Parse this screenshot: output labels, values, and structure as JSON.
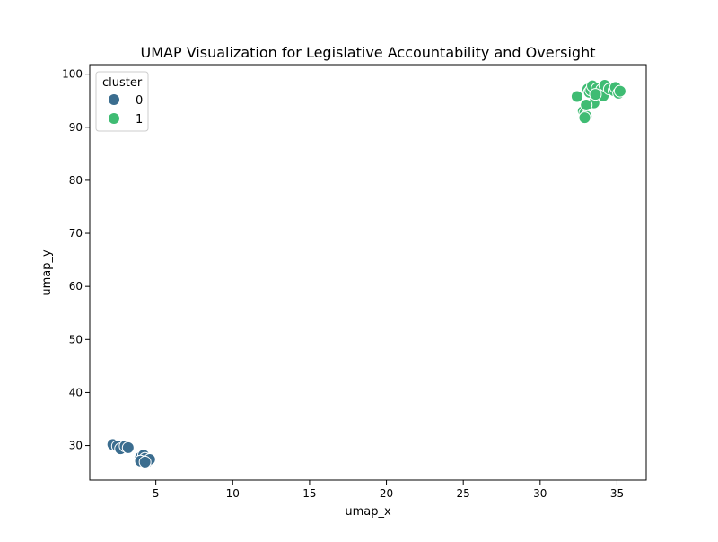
{
  "chart_data": {
    "type": "scatter",
    "title": "UMAP Visualization for Legislative Accountability and Oversight",
    "xlabel": "umap_x",
    "ylabel": "umap_y",
    "xlim": [
      0.7,
      36.9
    ],
    "ylim": [
      23.5,
      101.8
    ],
    "xticks": [
      5,
      10,
      15,
      20,
      25,
      30,
      35
    ],
    "yticks": [
      30,
      40,
      50,
      60,
      70,
      80,
      90,
      100
    ],
    "grid": false,
    "legend": {
      "title": "cluster",
      "placement": "top-left"
    },
    "series": [
      {
        "name": "0",
        "color": "#3b6d8f",
        "points": [
          [
            2.2,
            30.2
          ],
          [
            2.5,
            29.9
          ],
          [
            2.7,
            29.4
          ],
          [
            3.0,
            29.9
          ],
          [
            3.2,
            29.6
          ],
          [
            4.0,
            27.8
          ],
          [
            4.2,
            28.2
          ],
          [
            4.3,
            27.6
          ],
          [
            4.5,
            27.1
          ],
          [
            4.6,
            27.4
          ],
          [
            4.0,
            27.1
          ],
          [
            4.3,
            26.9
          ]
        ]
      },
      {
        "name": "1",
        "color": "#3fbc73",
        "points": [
          [
            32.4,
            95.8
          ],
          [
            32.8,
            93.0
          ],
          [
            32.9,
            92.6
          ],
          [
            33.0,
            92.1
          ],
          [
            32.9,
            91.8
          ],
          [
            33.1,
            97.2
          ],
          [
            33.2,
            96.6
          ],
          [
            33.3,
            97.0
          ],
          [
            33.4,
            97.8
          ],
          [
            33.5,
            94.6
          ],
          [
            33.7,
            97.3
          ],
          [
            34.0,
            97.1
          ],
          [
            34.1,
            95.9
          ],
          [
            34.2,
            97.9
          ],
          [
            34.5,
            97.2
          ],
          [
            34.8,
            96.9
          ],
          [
            34.9,
            97.5
          ],
          [
            35.1,
            96.4
          ],
          [
            35.2,
            96.8
          ],
          [
            33.6,
            96.2
          ],
          [
            33.0,
            94.2
          ]
        ]
      }
    ]
  }
}
